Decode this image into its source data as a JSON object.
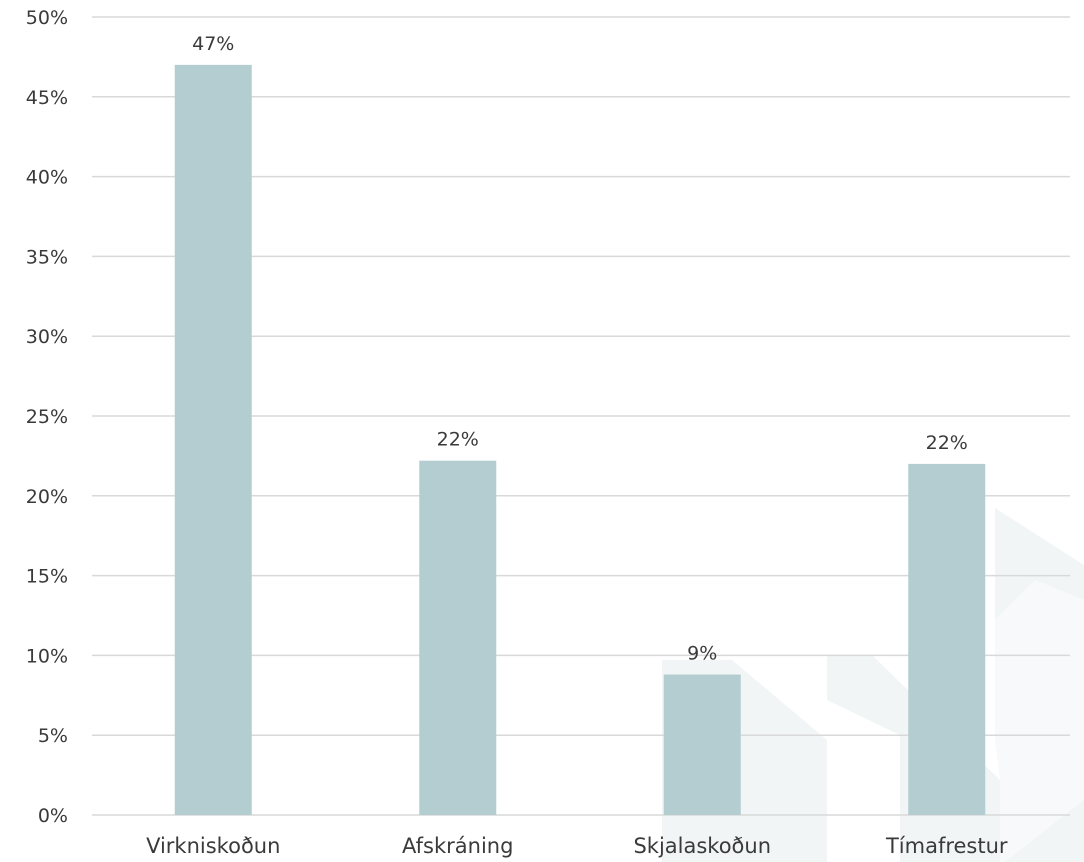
{
  "chart_data": {
    "type": "bar",
    "categories": [
      "Virkniskoðun",
      "Afskráning",
      "Skjalaskoðun",
      "Tímafrestur"
    ],
    "values": [
      47,
      22.2,
      8.8,
      22
    ],
    "data_labels": [
      "47%",
      "22%",
      "9%",
      "22%"
    ],
    "title": "",
    "xlabel": "",
    "ylabel": "",
    "ylim": [
      0,
      50
    ],
    "y_ticks": [
      {
        "value": 0,
        "label": "0%"
      },
      {
        "value": 5,
        "label": "5%"
      },
      {
        "value": 10,
        "label": "10%"
      },
      {
        "value": 15,
        "label": "15%"
      },
      {
        "value": 20,
        "label": "20%"
      },
      {
        "value": 25,
        "label": "25%"
      },
      {
        "value": 30,
        "label": "30%"
      },
      {
        "value": 35,
        "label": "35%"
      },
      {
        "value": 40,
        "label": "40%"
      },
      {
        "value": 45,
        "label": "45%"
      },
      {
        "value": 50,
        "label": "50%"
      }
    ],
    "grid": true,
    "legend": "none"
  },
  "colors": {
    "bar": "#b4cdd0",
    "grid": "#d9d9d9",
    "text": "#3a3a3a",
    "watermark": "#f1f5f6"
  }
}
